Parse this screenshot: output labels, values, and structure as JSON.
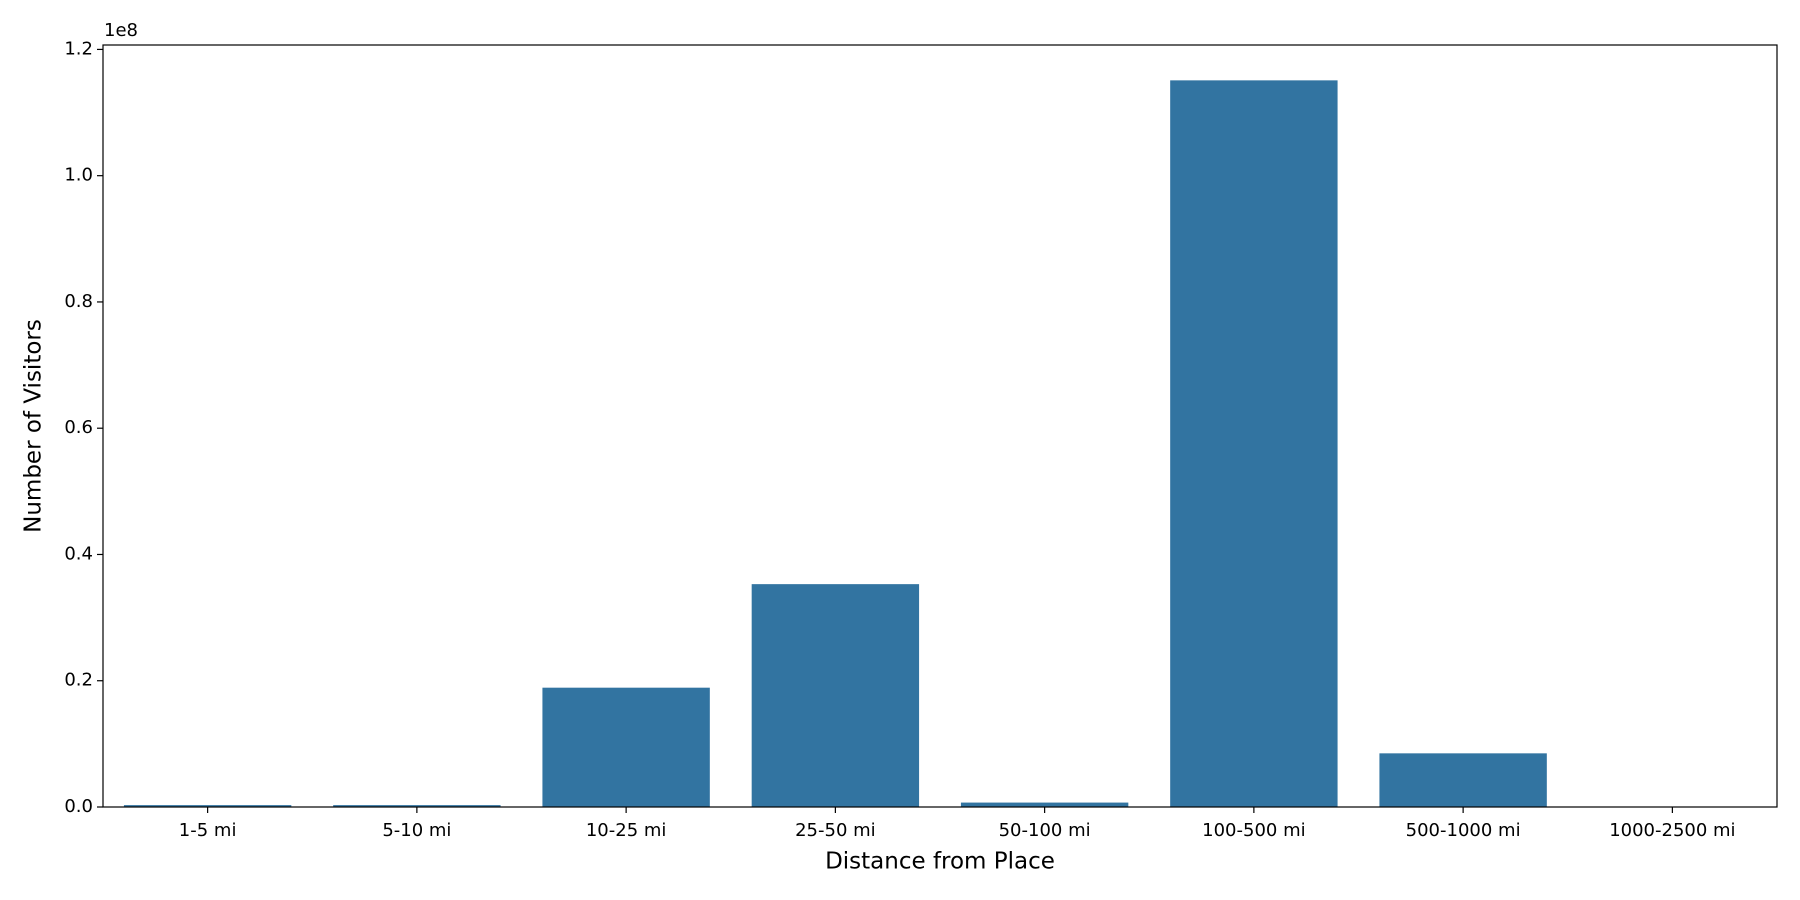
{
  "chart_data": {
    "type": "bar",
    "xlabel": "Distance from Place",
    "ylabel": "Number of Visitors",
    "y_offset_label": "1e8",
    "categories": [
      "1-5 mi",
      "5-10 mi",
      "10-25 mi",
      "25-50 mi",
      "50-100 mi",
      "100-500 mi",
      "500-1000 mi",
      "1000-2500 mi"
    ],
    "values": [
      300000,
      300000,
      18900000,
      35300000,
      700000,
      115100000,
      8500000,
      50000
    ],
    "color": "#3274a1",
    "ylim": [
      0,
      120700000
    ],
    "yticks": [
      {
        "value": 0,
        "label": "0.0"
      },
      {
        "value": 20000000,
        "label": "0.2"
      },
      {
        "value": 40000000,
        "label": "0.4"
      },
      {
        "value": 60000000,
        "label": "0.6"
      },
      {
        "value": 80000000,
        "label": "0.8"
      },
      {
        "value": 100000000,
        "label": "1.0"
      },
      {
        "value": 120000000,
        "label": "1.2"
      }
    ],
    "grid": false
  }
}
